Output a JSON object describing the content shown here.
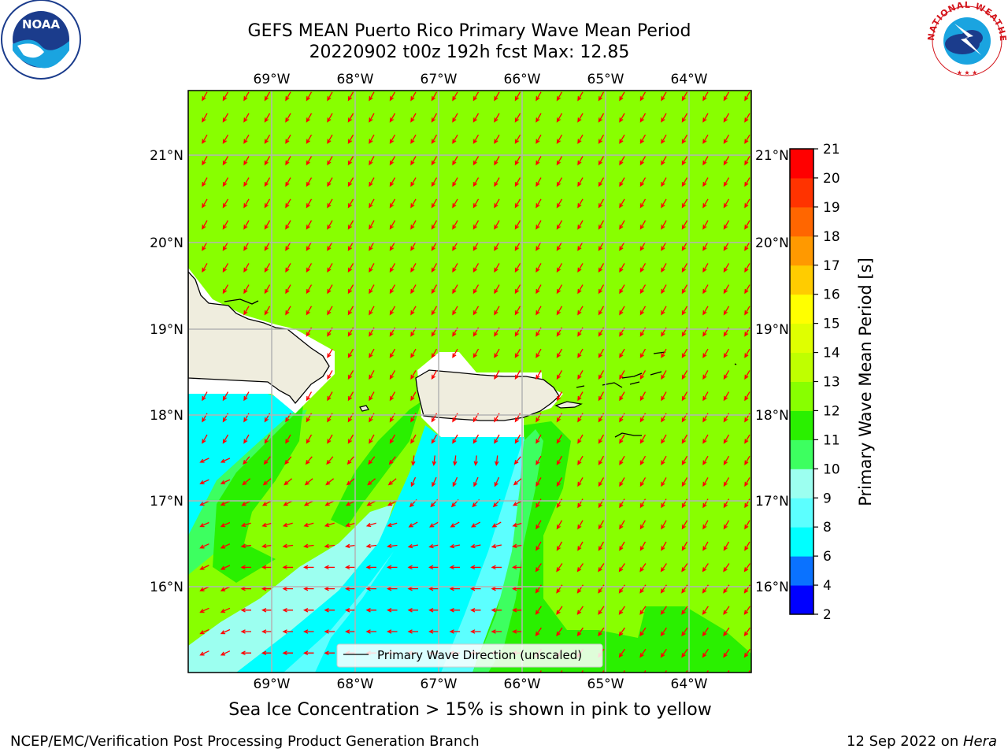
{
  "title": {
    "line1": "GEFS MEAN Puerto Rico Primary Wave Mean Period",
    "line2": "20220902 t00z 192h fcst   Max: 12.85"
  },
  "map": {
    "lon_labels": [
      "69°W",
      "68°W",
      "67°W",
      "66°W",
      "65°W",
      "64°W"
    ],
    "lat_labels": [
      "21°N",
      "20°N",
      "19°N",
      "18°N",
      "17°N",
      "16°N"
    ],
    "legend_label": "Primary Wave Direction (unscaled)",
    "colors": {
      "land": "#efedde",
      "arrow": "#ff0000",
      "grid": "#b4b4b4"
    }
  },
  "colorbar": {
    "label": "Primary Wave Mean Period [s]",
    "ticks": [
      "2",
      "4",
      "6",
      "8",
      "9",
      "10",
      "11",
      "12",
      "13",
      "14",
      "15",
      "16",
      "17",
      "18",
      "19",
      "20",
      "21"
    ],
    "colors": [
      "#0000ff",
      "#0a72ff",
      "#00ffff",
      "#5cffff",
      "#9cfff0",
      "#3dff60",
      "#2af000",
      "#88ff00",
      "#bfff00",
      "#dfff00",
      "#ffff00",
      "#ffcc00",
      "#ff9900",
      "#ff6600",
      "#ff3300",
      "#ff0000"
    ]
  },
  "ice_note": "Sea Ice Concentration > 15% is shown in pink to yellow",
  "footer": {
    "left": "NCEP/EMC/Verification Post Processing Product Generation Branch",
    "right_prefix": "12 Sep 2022 on ",
    "right_host": "Hera"
  },
  "logos": {
    "noaa_text": "NOAA",
    "nws_text": "NATIONAL WEATHER SERVICE"
  }
}
